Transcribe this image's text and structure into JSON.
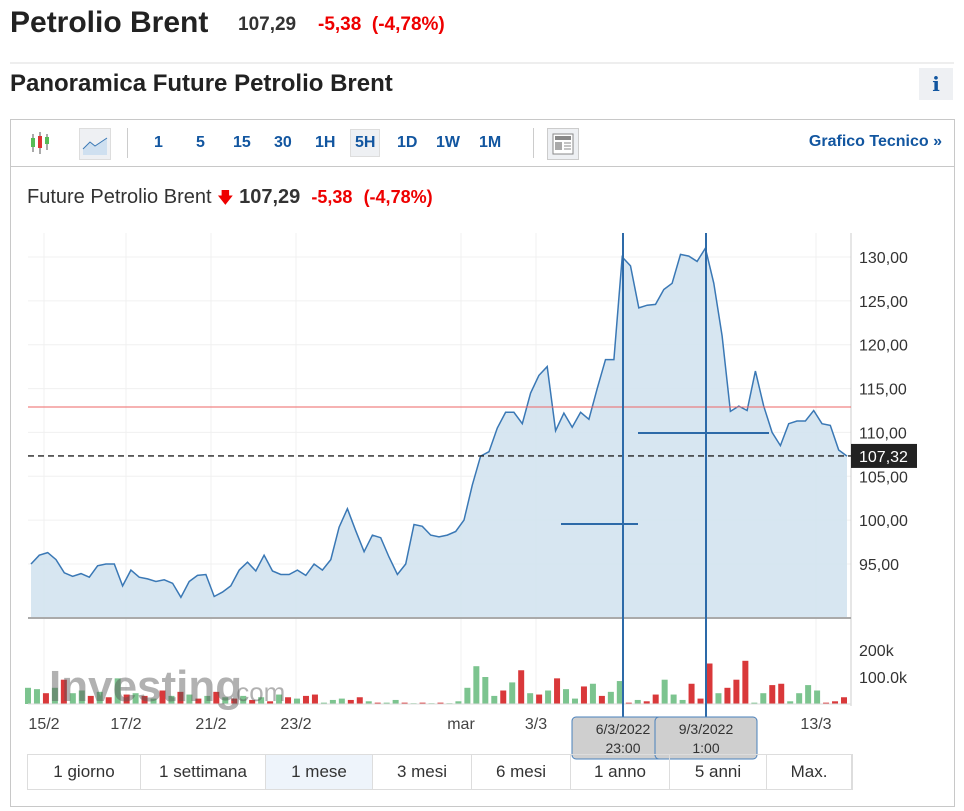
{
  "header": {
    "title": "Petrolio Brent",
    "price": "107,29",
    "change": "-5,38",
    "change_pct": "(-4,78%)"
  },
  "section": {
    "title": "Panoramica Future Petrolio Brent",
    "info_label": "i"
  },
  "toolbar": {
    "intervals": [
      "1",
      "5",
      "15",
      "30",
      "1H",
      "5H",
      "1D",
      "1W",
      "1M"
    ],
    "selected": "5H",
    "technical_link": "Grafico Tecnico »"
  },
  "chart_title": {
    "name": "Future Petrolio Brent",
    "price": "107,29",
    "change": "-5,38",
    "change_pct": "(-4,78%)"
  },
  "ranges": [
    {
      "label": "1 giorno"
    },
    {
      "label": "1 settimana"
    },
    {
      "label": "1 mese"
    },
    {
      "label": "3 mesi"
    },
    {
      "label": "6 mesi"
    },
    {
      "label": "1 anno"
    },
    {
      "label": "5 anni"
    },
    {
      "label": "Max."
    }
  ],
  "selected_range": "1 mese",
  "colors": {
    "line": "#3a78b5",
    "up": "#7cc48f",
    "down": "#d9383a",
    "accent": "#1256a0",
    "neg": "#e00"
  },
  "chart_data": {
    "type": "area",
    "ylim": [
      90,
      132
    ],
    "y_ticks": [
      "130,00",
      "125,00",
      "120,00",
      "115,00",
      "110,00",
      "105,00",
      "100,00",
      "95,00"
    ],
    "y_tick_values": [
      130,
      125,
      120,
      115,
      110,
      105,
      100,
      95
    ],
    "x_ticks": [
      "15/2",
      "17/2",
      "21/2",
      "23/2",
      "mar",
      "3/3",
      "13/3"
    ],
    "current_price_label": "107,32",
    "current_price": 107.32,
    "red_line": 112.9,
    "crosshair_labels": [
      {
        "date": "6/3/2022",
        "time": "23:00"
      },
      {
        "date": "9/3/2022",
        "time": "1:00"
      }
    ],
    "values": [
      95,
      96,
      96.3,
      95.5,
      94,
      93.6,
      93.9,
      93.5,
      94.8,
      95,
      95,
      92.5,
      94.3,
      93.5,
      93.3,
      93,
      93.2,
      92.8,
      91.2,
      93,
      93.7,
      93.8,
      91.3,
      91.8,
      92.5,
      94.3,
      95.2,
      94.2,
      96,
      94.2,
      93.8,
      93.8,
      94.3,
      93.7,
      95,
      94.3,
      95.5,
      99.2,
      101.3,
      98.8,
      96.4,
      98.3,
      98,
      95.8,
      93.8,
      95,
      99.5,
      99.3,
      98.3,
      98.1,
      98.3,
      98.7,
      100,
      104,
      107.3,
      107.8,
      110.5,
      112.3,
      112.3,
      111,
      114.5,
      116.5,
      117.5,
      110.2,
      112.2,
      110.6,
      112.3,
      111.5,
      115,
      118.3,
      118.3,
      130,
      129,
      124.2,
      124.5,
      124.6,
      126.3,
      127,
      130.3,
      130.1,
      129.5,
      131,
      127,
      121,
      112.4,
      113,
      112.5,
      117,
      113,
      110,
      108.5,
      111,
      111.3,
      111.3,
      112.5,
      111,
      110.8,
      108,
      107.3
    ],
    "volume_ticks": [
      "200k",
      "100.0k"
    ],
    "volume": [
      [
        60,
        "u"
      ],
      [
        55,
        "u"
      ],
      [
        40,
        "d"
      ],
      [
        60,
        "u"
      ],
      [
        90,
        "d"
      ],
      [
        40,
        "u"
      ],
      [
        50,
        "u"
      ],
      [
        30,
        "d"
      ],
      [
        45,
        "u"
      ],
      [
        25,
        "d"
      ],
      [
        95,
        "u"
      ],
      [
        35,
        "d"
      ],
      [
        40,
        "u"
      ],
      [
        30,
        "d"
      ],
      [
        20,
        "u"
      ],
      [
        50,
        "d"
      ],
      [
        30,
        "u"
      ],
      [
        45,
        "d"
      ],
      [
        35,
        "u"
      ],
      [
        20,
        "d"
      ],
      [
        30,
        "u"
      ],
      [
        45,
        "d"
      ],
      [
        25,
        "u"
      ],
      [
        20,
        "d"
      ],
      [
        30,
        "u"
      ],
      [
        15,
        "d"
      ],
      [
        25,
        "u"
      ],
      [
        10,
        "d"
      ],
      [
        35,
        "u"
      ],
      [
        25,
        "d"
      ],
      [
        20,
        "u"
      ],
      [
        30,
        "d"
      ],
      [
        35,
        "d"
      ],
      [
        5,
        "u"
      ],
      [
        15,
        "u"
      ],
      [
        20,
        "u"
      ],
      [
        15,
        "d"
      ],
      [
        25,
        "d"
      ],
      [
        10,
        "u"
      ],
      [
        5,
        "d"
      ],
      [
        5,
        "u"
      ],
      [
        15,
        "u"
      ],
      [
        5,
        "d"
      ],
      [
        3,
        "u"
      ],
      [
        5,
        "d"
      ],
      [
        3,
        "u"
      ],
      [
        5,
        "d"
      ],
      [
        3,
        "u"
      ],
      [
        10,
        "u"
      ],
      [
        60,
        "u"
      ],
      [
        140,
        "u"
      ],
      [
        100,
        "u"
      ],
      [
        30,
        "u"
      ],
      [
        50,
        "d"
      ],
      [
        80,
        "u"
      ],
      [
        125,
        "d"
      ],
      [
        40,
        "u"
      ],
      [
        35,
        "d"
      ],
      [
        50,
        "u"
      ],
      [
        95,
        "d"
      ],
      [
        55,
        "u"
      ],
      [
        20,
        "u"
      ],
      [
        65,
        "d"
      ],
      [
        75,
        "u"
      ],
      [
        30,
        "d"
      ],
      [
        45,
        "u"
      ],
      [
        85,
        "u"
      ],
      [
        5,
        "d"
      ],
      [
        15,
        "u"
      ],
      [
        10,
        "d"
      ],
      [
        35,
        "d"
      ],
      [
        90,
        "u"
      ],
      [
        35,
        "u"
      ],
      [
        15,
        "u"
      ],
      [
        75,
        "d"
      ],
      [
        20,
        "d"
      ],
      [
        150,
        "d"
      ],
      [
        40,
        "u"
      ],
      [
        60,
        "d"
      ],
      [
        90,
        "d"
      ],
      [
        160,
        "d"
      ],
      [
        5,
        "u"
      ],
      [
        40,
        "u"
      ],
      [
        70,
        "d"
      ],
      [
        75,
        "d"
      ],
      [
        10,
        "u"
      ],
      [
        40,
        "u"
      ],
      [
        70,
        "u"
      ],
      [
        50,
        "u"
      ],
      [
        5,
        "d"
      ],
      [
        10,
        "d"
      ],
      [
        25,
        "d"
      ]
    ]
  }
}
